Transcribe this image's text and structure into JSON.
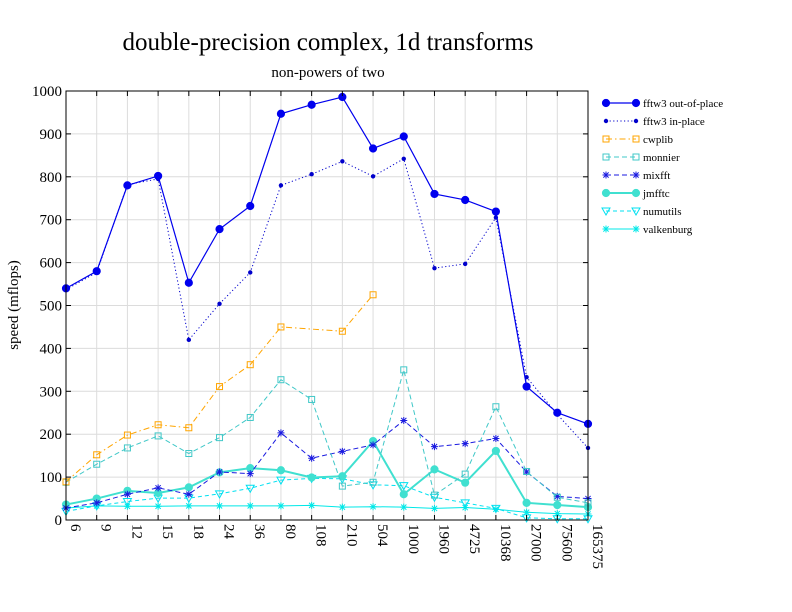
{
  "chart_data": {
    "type": "line",
    "title": "double-precision complex, 1d transforms",
    "subtitle": "non-powers of two",
    "xlabel": "",
    "ylabel": "speed (mflops)",
    "ylim": [
      0,
      1000
    ],
    "yticks": [
      "0",
      "100",
      "200",
      "300",
      "400",
      "500",
      "600",
      "700",
      "800",
      "900",
      "1000"
    ],
    "grid": true,
    "legend_position": "right",
    "categories": [
      "6",
      "9",
      "12",
      "15",
      "18",
      "24",
      "36",
      "80",
      "108",
      "210",
      "504",
      "1000",
      "1960",
      "4725",
      "10368",
      "27000",
      "75600",
      "165375"
    ],
    "series": [
      {
        "name": "fftw3 out-of-place",
        "color": "#0000ee",
        "dash": "",
        "marker": "filled-circle",
        "width": 1.2,
        "values": [
          540,
          580,
          780,
          802,
          553,
          678,
          732,
          947,
          968,
          986,
          866,
          894,
          760,
          746,
          719,
          311,
          250,
          224
        ]
      },
      {
        "name": "fftw3 in-place",
        "color": "#0000cc",
        "dash": "1.2,2.4",
        "marker": "small-dot",
        "width": 1.0,
        "values": [
          537,
          577,
          782,
          795,
          420,
          504,
          577,
          780,
          806,
          836,
          801,
          842,
          587,
          597,
          705,
          333,
          246,
          168
        ]
      },
      {
        "name": "cwplib",
        "color": "#ffa500",
        "dash": "6,3,1.5,3",
        "marker": "open-square",
        "width": 1.0,
        "values": [
          89,
          152,
          198,
          222,
          215,
          311,
          362,
          450,
          null,
          440,
          525,
          null,
          null,
          null,
          null,
          null,
          null,
          null
        ]
      },
      {
        "name": "monnier",
        "color": "#40c8c8",
        "dash": "5,3",
        "marker": "open-square",
        "width": 1.0,
        "values": [
          88,
          130,
          168,
          196,
          155,
          192,
          239,
          327,
          281,
          79,
          88,
          350,
          58,
          107,
          264,
          113,
          53,
          40
        ]
      },
      {
        "name": "mixfft",
        "color": "#1a1ae0",
        "dash": "5,3",
        "marker": "asterisk",
        "width": 1.0,
        "values": [
          28,
          40,
          60,
          75,
          60,
          112,
          108,
          203,
          144,
          160,
          175,
          232,
          171,
          178,
          190,
          112,
          55,
          50
        ]
      },
      {
        "name": "jmfftc",
        "color": "#40e0d0",
        "dash": "",
        "marker": "filled-circle",
        "width": 2.0,
        "values": [
          36,
          50,
          68,
          63,
          76,
          111,
          121,
          116,
          99,
          102,
          184,
          60,
          118,
          87,
          161,
          40,
          35,
          30
        ]
      },
      {
        "name": "numutils",
        "color": "#00e0f0",
        "dash": "4,3",
        "marker": "triangle-down",
        "width": 1.0,
        "values": [
          20,
          33,
          43,
          51,
          51,
          61,
          74,
          93,
          97,
          96,
          82,
          80,
          53,
          40,
          27,
          5,
          3,
          3
        ]
      },
      {
        "name": "valkenburg",
        "color": "#00e8e8",
        "dash": "",
        "marker": "asterisk",
        "width": 1.0,
        "values": [
          28,
          33,
          32,
          32,
          33,
          33,
          33,
          33,
          34,
          30,
          31,
          30,
          27,
          29,
          25,
          18,
          15,
          14
        ]
      }
    ]
  }
}
